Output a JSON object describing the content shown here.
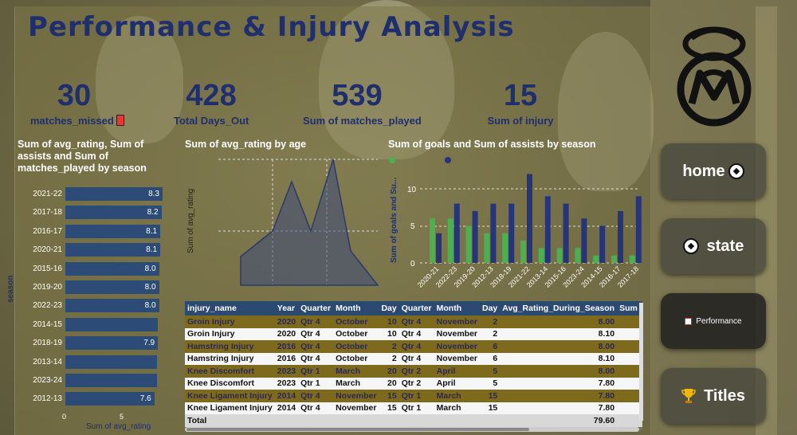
{
  "dashboard": {
    "title": "Performance & Injury Analysis"
  },
  "kpis": [
    {
      "value": "30",
      "label": "matches_missed"
    },
    {
      "value": "428",
      "label": "Total Days_Out"
    },
    {
      "value": "539",
      "label": "Sum of matches_played"
    },
    {
      "value": "15",
      "label": "Sum of injury"
    }
  ],
  "season_chart": {
    "title": "Sum of avg_rating, Sum of assists and Sum of matches_played by season",
    "axis_title": "season",
    "x_title": "Sum of avg_rating",
    "x_ticks": [
      "0",
      "5"
    ],
    "bars": [
      {
        "season": "2021-22",
        "value": "8.3",
        "v": 8.3
      },
      {
        "season": "2017-18",
        "value": "8.2",
        "v": 8.2
      },
      {
        "season": "2016-17",
        "value": "8.1",
        "v": 8.1
      },
      {
        "season": "2020-21",
        "value": "8.1",
        "v": 8.1
      },
      {
        "season": "2015-16",
        "value": "8.0",
        "v": 8.0
      },
      {
        "season": "2019-20",
        "value": "8.0",
        "v": 8.0
      },
      {
        "season": "2022-23",
        "value": "8.0",
        "v": 8.0
      },
      {
        "season": "2014-15",
        "value": "",
        "v": 7.9
      },
      {
        "season": "2018-19",
        "value": "7.9",
        "v": 7.9
      },
      {
        "season": "2013-14",
        "value": "",
        "v": 7.8
      },
      {
        "season": "2023-24",
        "value": "",
        "v": 7.8
      },
      {
        "season": "2012-13",
        "value": "7.6",
        "v": 7.6
      }
    ]
  },
  "age_chart": {
    "title": "Sum of avg_rating by age",
    "ylabel": "Sum of avg_rating"
  },
  "goals_chart": {
    "title": "Sum of goals and Sum of assists by season",
    "ylabel": "Sum of goals and Su...",
    "yticks": [
      "0",
      "5",
      "10"
    ]
  },
  "chart_data": [
    {
      "type": "bar",
      "title": "Sum of avg_rating, Sum of assists and Sum of matches_played by season",
      "categories": [
        "2021-22",
        "2017-18",
        "2016-17",
        "2020-21",
        "2015-16",
        "2019-20",
        "2022-23",
        "2014-15",
        "2018-19",
        "2013-14",
        "2023-24",
        "2012-13"
      ],
      "series": [
        {
          "name": "Sum of avg_rating",
          "values": [
            8.3,
            8.2,
            8.1,
            8.1,
            8.0,
            8.0,
            8.0,
            7.9,
            7.9,
            7.8,
            7.8,
            7.6
          ]
        }
      ],
      "xlabel": "Sum of avg_rating",
      "ylabel": "season"
    },
    {
      "type": "area",
      "title": "Sum of avg_rating by age",
      "ylabel": "Sum of avg_rating",
      "series": [
        {
          "name": "Sum of avg_rating",
          "values": [
            8,
            16,
            24,
            8,
            24,
            0
          ]
        }
      ]
    },
    {
      "type": "bar",
      "title": "Sum of goals and Sum of assists by season",
      "categories": [
        "2020-21",
        "2022-23",
        "2019-20",
        "2012-13",
        "2018-19",
        "2021-22",
        "2013-14",
        "2015-16",
        "2023-24",
        "2014-15",
        "2016-17",
        "2017-18"
      ],
      "series": [
        {
          "name": "Sum of goals",
          "values": [
            6,
            6,
            5,
            4,
            4,
            3,
            2,
            2,
            2,
            1,
            1,
            1
          ],
          "color": "#4caf50"
        },
        {
          "name": "Sum of assists",
          "values": [
            4,
            8,
            7,
            8,
            8,
            12,
            9,
            8,
            6,
            5,
            7,
            9
          ],
          "color": "#26357a"
        }
      ],
      "ylim": [
        0,
        12
      ]
    }
  ],
  "injury_table": {
    "columns": [
      "injury_name",
      "Year",
      "Quarter",
      "Month",
      "Day",
      "Quarter",
      "Month",
      "Day",
      "Avg_Rating_During_Season",
      "Sum of"
    ],
    "rows": [
      [
        "Groin Injury",
        "2020",
        "Qtr 4",
        "October",
        "10",
        "Qtr 4",
        "November",
        "2",
        "8.00"
      ],
      [
        "Groin Injury",
        "2020",
        "Qtr 4",
        "October",
        "10",
        "Qtr 4",
        "November",
        "2",
        "8.10"
      ],
      [
        "Hamstring Injury",
        "2016",
        "Qtr 4",
        "October",
        "2",
        "Qtr 4",
        "November",
        "6",
        "8.00"
      ],
      [
        "Hamstring Injury",
        "2016",
        "Qtr 4",
        "October",
        "2",
        "Qtr 4",
        "November",
        "6",
        "8.10"
      ],
      [
        "Knee Discomfort",
        "2023",
        "Qtr 1",
        "March",
        "20",
        "Qtr 2",
        "April",
        "5",
        "8.00"
      ],
      [
        "Knee Discomfort",
        "2023",
        "Qtr 1",
        "March",
        "20",
        "Qtr 2",
        "April",
        "5",
        "7.80"
      ],
      [
        "Knee Ligament Injury",
        "2014",
        "Qtr 4",
        "November",
        "15",
        "Qtr 1",
        "March",
        "15",
        "7.80"
      ],
      [
        "Knee Ligament Injury",
        "2014",
        "Qtr 4",
        "November",
        "15",
        "Qtr 1",
        "March",
        "15",
        "7.80"
      ]
    ],
    "total_label": "Total",
    "total_value": "79.60"
  },
  "nav": {
    "home": "home",
    "state": "state",
    "performance": "Performance",
    "titles": "Titles"
  },
  "colors": {
    "title": "#1f2f6e",
    "bar": "#2c4c77",
    "goals": "#4caf50",
    "assists": "#26357a",
    "row_highlight": "#7d6a1c"
  }
}
